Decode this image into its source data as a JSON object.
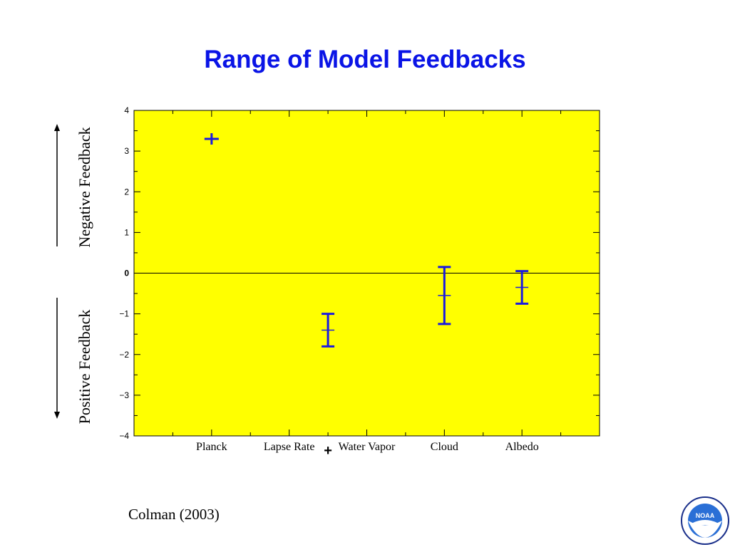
{
  "slide": {
    "title": "Range of Model Feedbacks",
    "left_label_top": "Negative Feedback",
    "left_label_bottom": "Positive Feedback",
    "citation": "Colman (2003)",
    "plus_annotation": "+"
  },
  "colors": {
    "title": "#0a14e6",
    "plot_background": "#ffff00",
    "marks": "#1a1ae0",
    "axis": "#000000"
  },
  "logo": {
    "text": "NOAA",
    "icon": "noaa-logo"
  },
  "chart_data": {
    "type": "errorbar",
    "title": "",
    "xlabel": "",
    "ylabel": "",
    "ylim": [
      -4,
      4
    ],
    "yticks": [
      4,
      3,
      2,
      1,
      0,
      -1,
      -2,
      -3,
      -4
    ],
    "ytick_labels": [
      "4",
      "3",
      "2",
      "1",
      "0",
      "−1",
      "−2",
      "−3",
      "−4"
    ],
    "grid": false,
    "zero_line": true,
    "categories": [
      "Planck",
      "Lapse Rate",
      "Water Vapor",
      "Cloud",
      "Albedo"
    ],
    "series": [
      {
        "points": [
          {
            "category": "Planck",
            "x": 1,
            "mean": 3.3,
            "low": 3.3,
            "high": 3.3
          },
          {
            "category": "Lapse Rate + Water Vapor",
            "x": 2.5,
            "mean": -1.4,
            "low": -1.8,
            "high": -1.0
          },
          {
            "category": "Cloud",
            "x": 4,
            "mean": -0.55,
            "low": -1.25,
            "high": 0.15
          },
          {
            "category": "Albedo",
            "x": 5,
            "mean": -0.35,
            "low": -0.75,
            "high": 0.05
          }
        ]
      }
    ]
  }
}
